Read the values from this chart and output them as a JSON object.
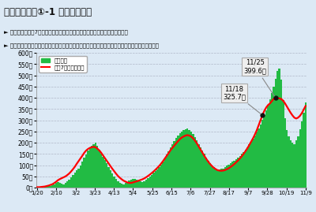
{
  "title": "【感染状況】①-1 新規陽性者数",
  "subtitle1": "► 新規陽性者数の7日間平均は高い水準のまま連続して大幅に増加している。",
  "subtitle2": "► 急速に感染拡大しており、深刻な状況になる前に、感染拡大防止策を早急に講じる必要がある。",
  "title_bg": "#9dbdd9",
  "subtitle_bg": "#d5e6f3",
  "chart_bg": "#dce9f5",
  "bar_color": "#22bb44",
  "line_color": "#ff0000",
  "yticks": [
    0,
    50,
    100,
    150,
    200,
    250,
    300,
    350,
    400,
    450,
    500,
    550,
    600
  ],
  "ytick_labels": [
    "0人",
    "50人",
    "100人",
    "150人",
    "200人",
    "250人",
    "300人",
    "350人",
    "400人",
    "450人",
    "500人",
    "550人",
    "600人"
  ],
  "xtick_labels": [
    "1/20",
    "2/10",
    "3/2",
    "3/23",
    "4/13",
    "5/4",
    "5/25",
    "6/15",
    "7/6",
    "7/27",
    "8/17",
    "9/7",
    "9/28",
    "10/19",
    "11/9"
  ],
  "legend_bar": "陽性者数",
  "legend_line": "直近7日間移動平均",
  "annotation1_text": "11/25\n399.6人",
  "annotation2_text": "11/18\n325.7人",
  "bar_values": [
    2,
    1,
    2,
    1,
    3,
    5,
    6,
    8,
    10,
    14,
    20,
    26,
    22,
    18,
    16,
    22,
    28,
    36,
    46,
    56,
    66,
    76,
    86,
    100,
    115,
    132,
    148,
    165,
    175,
    185,
    195,
    200,
    185,
    168,
    152,
    138,
    122,
    108,
    92,
    78,
    63,
    50,
    40,
    30,
    22,
    18,
    16,
    20,
    26,
    32,
    36,
    40,
    38,
    35,
    32,
    28,
    26,
    28,
    34,
    42,
    50,
    58,
    66,
    74,
    82,
    90,
    102,
    116,
    130,
    148,
    163,
    180,
    194,
    208,
    220,
    232,
    242,
    250,
    256,
    260,
    264,
    258,
    250,
    238,
    224,
    210,
    194,
    180,
    164,
    150,
    134,
    120,
    108,
    98,
    90,
    84,
    82,
    80,
    84,
    86,
    92,
    97,
    102,
    108,
    115,
    120,
    128,
    134,
    142,
    150,
    160,
    170,
    180,
    192,
    205,
    218,
    232,
    248,
    265,
    282,
    302,
    322,
    345,
    368,
    395,
    420,
    450,
    485,
    520,
    530,
    480,
    390,
    310,
    255,
    230,
    210,
    200,
    195,
    210,
    230,
    260,
    295,
    335,
    380
  ],
  "avg_values": [
    2,
    2,
    3,
    4,
    5,
    7,
    9,
    12,
    15,
    20,
    26,
    33,
    38,
    42,
    46,
    50,
    56,
    63,
    72,
    82,
    93,
    106,
    118,
    130,
    142,
    155,
    165,
    172,
    177,
    180,
    182,
    180,
    174,
    166,
    156,
    144,
    132,
    120,
    108,
    96,
    84,
    73,
    62,
    52,
    44,
    37,
    31,
    27,
    23,
    21,
    21,
    23,
    26,
    28,
    31,
    34,
    37,
    41,
    46,
    52,
    58,
    65,
    72,
    80,
    88,
    97,
    107,
    118,
    130,
    142,
    154,
    167,
    177,
    187,
    197,
    207,
    216,
    223,
    228,
    232,
    234,
    232,
    228,
    220,
    210,
    198,
    184,
    170,
    156,
    142,
    129,
    117,
    106,
    97,
    89,
    83,
    78,
    76,
    75,
    76,
    78,
    82,
    86,
    92,
    98,
    105,
    113,
    121,
    130,
    140,
    151,
    163,
    176,
    190,
    205,
    220,
    237,
    256,
    278,
    301,
    323,
    342,
    357,
    368,
    375,
    385,
    396,
    400,
    399,
    398,
    395,
    388,
    376,
    362,
    348,
    334,
    322,
    312,
    308,
    312,
    320,
    332,
    348,
    364
  ],
  "n_bars": 144
}
